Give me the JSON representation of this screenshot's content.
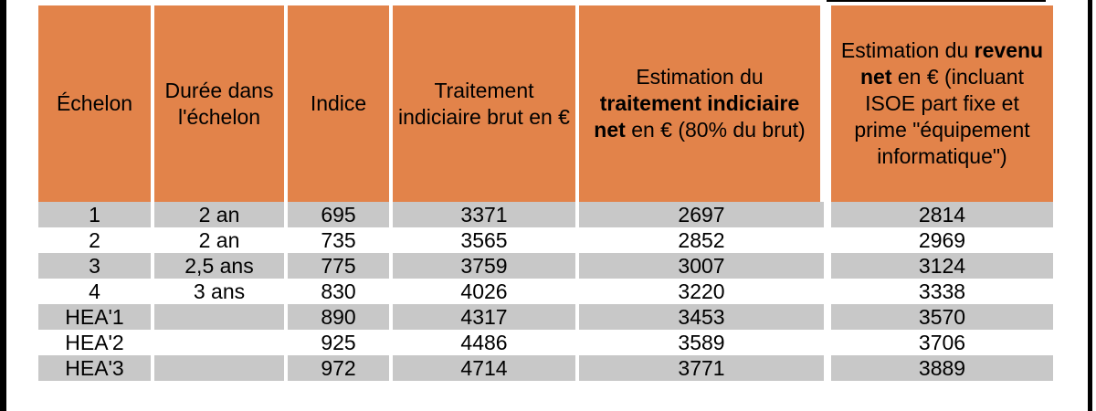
{
  "headers": {
    "echelon": "Échelon",
    "duree": "Durée dans l'échelon",
    "indice": "Indice",
    "traitement_brut": "Traitement indiciaire brut en €",
    "net_pre": "Estimation du",
    "net_bold": "traitement indiciaire net",
    "net_post": "en € (80% du brut)",
    "revenu_pre": "Estimation du",
    "revenu_bold": "revenu net",
    "revenu_post": "en € (incluant ISOE part fixe et prime \"équipement informatique\")"
  },
  "rows": [
    {
      "echelon": "1",
      "duree": "2 an",
      "indice": "695",
      "brut": "3371",
      "net": "2697",
      "revenu": "2814"
    },
    {
      "echelon": "2",
      "duree": "2 an",
      "indice": "735",
      "brut": "3565",
      "net": "2852",
      "revenu": "2969"
    },
    {
      "echelon": "3",
      "duree": "2,5 ans",
      "indice": "775",
      "brut": "3759",
      "net": "3007",
      "revenu": "3124"
    },
    {
      "echelon": "4",
      "duree": "3 ans",
      "indice": "830",
      "brut": "4026",
      "net": "3220",
      "revenu": "3338"
    },
    {
      "echelon": "HEA'1",
      "duree": "",
      "indice": "890",
      "brut": "4317",
      "net": "3453",
      "revenu": "3570"
    },
    {
      "echelon": "HEA'2",
      "duree": "",
      "indice": "925",
      "brut": "4486",
      "net": "3589",
      "revenu": "3706"
    },
    {
      "echelon": "HEA'3",
      "duree": "",
      "indice": "972",
      "brut": "4714",
      "net": "3771",
      "revenu": "3889"
    }
  ],
  "colors": {
    "header_bg": "#E2834A",
    "shaded_row": "#C8C8C8",
    "frame": "#000000"
  }
}
